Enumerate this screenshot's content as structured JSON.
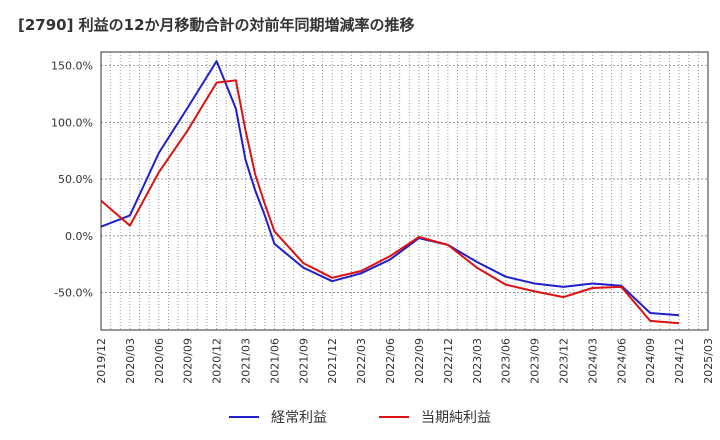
{
  "chart_data": {
    "type": "line",
    "title": "[2790]  利益の12か月移動合計の対前年同期増減率の推移",
    "xlabel": "",
    "ylabel": "",
    "ylim": [
      -83,
      162
    ],
    "yticks": [
      150,
      100,
      50,
      0,
      -50
    ],
    "ytick_labels": [
      "150.0%",
      "100.0%",
      "50.0%",
      "0.0%",
      "-50.0%"
    ],
    "x": [
      "2019/12",
      "2020/03",
      "2020/06",
      "2020/09",
      "2020/12",
      "2021/03",
      "2021/06",
      "2021/09",
      "2021/12",
      "2022/03",
      "2022/06",
      "2022/09",
      "2022/12",
      "2023/03",
      "2023/06",
      "2023/09",
      "2023/12",
      "2024/03",
      "2024/06",
      "2024/09",
      "2024/12",
      "2025/03"
    ],
    "grid": true,
    "legend_position": "bottom",
    "series": [
      {
        "name": "経常利益",
        "color": "#1f1fcc",
        "points": [
          [
            "2019/12",
            8
          ],
          [
            "2020/03",
            18
          ],
          [
            "2020/06",
            73
          ],
          [
            "2020/09",
            113
          ],
          [
            "2020/12",
            154
          ],
          [
            "2021/01",
            133
          ],
          [
            "2021/02",
            112
          ],
          [
            "2021/03",
            67
          ],
          [
            "2021/04",
            40
          ],
          [
            "2021/05",
            18
          ],
          [
            "2021/06",
            -7
          ],
          [
            "2021/09",
            -28
          ],
          [
            "2021/12",
            -40
          ],
          [
            "2022/03",
            -33
          ],
          [
            "2022/06",
            -21
          ],
          [
            "2022/09",
            -2
          ],
          [
            "2022/12",
            -8
          ],
          [
            "2023/03",
            -23
          ],
          [
            "2023/06",
            -36
          ],
          [
            "2023/09",
            -42
          ],
          [
            "2023/12",
            -45
          ],
          [
            "2024/03",
            -42
          ],
          [
            "2024/06",
            -44
          ],
          [
            "2024/09",
            -68
          ],
          [
            "2024/12",
            -70
          ]
        ]
      },
      {
        "name": "当期純利益",
        "color": "#dd1111",
        "points": [
          [
            "2019/12",
            31
          ],
          [
            "2020/03",
            9
          ],
          [
            "2020/06",
            56
          ],
          [
            "2020/09",
            93
          ],
          [
            "2020/12",
            135
          ],
          [
            "2021/01",
            136
          ],
          [
            "2021/02",
            137
          ],
          [
            "2021/03",
            93
          ],
          [
            "2021/04",
            54
          ],
          [
            "2021/05",
            28
          ],
          [
            "2021/06",
            4
          ],
          [
            "2021/09",
            -24
          ],
          [
            "2021/12",
            -37
          ],
          [
            "2022/03",
            -31
          ],
          [
            "2022/06",
            -18
          ],
          [
            "2022/09",
            -1
          ],
          [
            "2022/12",
            -8
          ],
          [
            "2023/03",
            -28
          ],
          [
            "2023/06",
            -43
          ],
          [
            "2023/09",
            -49
          ],
          [
            "2023/12",
            -54
          ],
          [
            "2024/03",
            -46
          ],
          [
            "2024/06",
            -45
          ],
          [
            "2024/09",
            -75
          ],
          [
            "2024/12",
            -77
          ]
        ]
      }
    ]
  }
}
